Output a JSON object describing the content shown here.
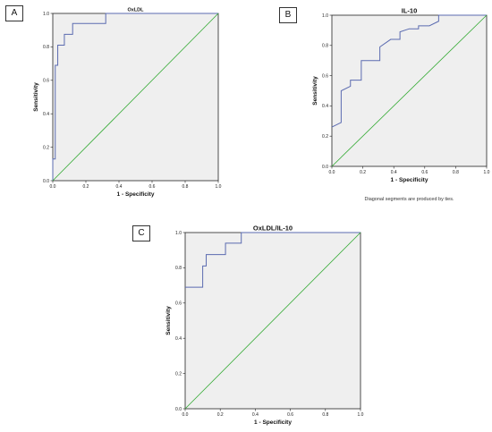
{
  "panels": [
    {
      "label": "A"
    },
    {
      "label": "B"
    },
    {
      "label": "C"
    }
  ],
  "chart_data": [
    {
      "type": "line",
      "title": "OxLDL",
      "xlabel": "1 - Specificity",
      "ylabel": "Sensitivity",
      "xlim": [
        0,
        1
      ],
      "ylim": [
        0,
        1
      ],
      "ticks": [
        "0.0",
        "0.2",
        "0.4",
        "0.6",
        "0.8",
        "1.0"
      ],
      "series": [
        {
          "kind": "roc",
          "color": "#5b6bb0",
          "points": [
            [
              0,
              0
            ],
            [
              0,
              0.13
            ],
            [
              0.015,
              0.13
            ],
            [
              0.015,
              0.69
            ],
            [
              0.03,
              0.69
            ],
            [
              0.03,
              0.81
            ],
            [
              0.07,
              0.81
            ],
            [
              0.07,
              0.875
            ],
            [
              0.12,
              0.875
            ],
            [
              0.12,
              0.94
            ],
            [
              0.32,
              0.94
            ],
            [
              0.32,
              1.0
            ],
            [
              1,
              1
            ]
          ]
        },
        {
          "kind": "reference",
          "color": "#33aa33",
          "points": [
            [
              0,
              0
            ],
            [
              1,
              1
            ]
          ]
        }
      ],
      "note": ""
    },
    {
      "type": "line",
      "title": "IL-10",
      "xlabel": "1 - Specificity",
      "ylabel": "Sensitivity",
      "xlim": [
        0,
        1
      ],
      "ylim": [
        0,
        1
      ],
      "ticks": [
        "0.0",
        "0.2",
        "0.4",
        "0.6",
        "0.8",
        "1.0"
      ],
      "series": [
        {
          "kind": "roc",
          "color": "#5b6bb0",
          "points": [
            [
              0,
              0.26
            ],
            [
              0.06,
              0.29
            ],
            [
              0.06,
              0.5
            ],
            [
              0.12,
              0.53
            ],
            [
              0.12,
              0.57
            ],
            [
              0.19,
              0.57
            ],
            [
              0.19,
              0.7
            ],
            [
              0.31,
              0.7
            ],
            [
              0.31,
              0.79
            ],
            [
              0.38,
              0.84
            ],
            [
              0.44,
              0.84
            ],
            [
              0.44,
              0.89
            ],
            [
              0.5,
              0.91
            ],
            [
              0.56,
              0.91
            ],
            [
              0.56,
              0.93
            ],
            [
              0.63,
              0.93
            ],
            [
              0.69,
              0.96
            ],
            [
              0.69,
              1.0
            ],
            [
              1,
              1
            ]
          ]
        },
        {
          "kind": "reference",
          "color": "#33aa33",
          "points": [
            [
              0,
              0
            ],
            [
              1,
              1
            ]
          ]
        }
      ],
      "note": "Diagonal segments are produced by ties."
    },
    {
      "type": "line",
      "title": "OxLDL/IL-10",
      "xlabel": "1 - Specificity",
      "ylabel": "Sensitivity",
      "xlim": [
        0,
        1
      ],
      "ylim": [
        0,
        1
      ],
      "ticks": [
        "0.0",
        "0.2",
        "0.4",
        "0.6",
        "0.8",
        "1.0"
      ],
      "series": [
        {
          "kind": "roc",
          "color": "#5b6bb0",
          "points": [
            [
              0,
              0.69
            ],
            [
              0.1,
              0.69
            ],
            [
              0.1,
              0.81
            ],
            [
              0.12,
              0.81
            ],
            [
              0.12,
              0.875
            ],
            [
              0.23,
              0.875
            ],
            [
              0.23,
              0.94
            ],
            [
              0.32,
              0.94
            ],
            [
              0.32,
              1.0
            ],
            [
              1,
              1
            ]
          ]
        },
        {
          "kind": "reference",
          "color": "#33aa33",
          "points": [
            [
              0,
              0
            ],
            [
              1,
              1
            ]
          ]
        }
      ],
      "note": ""
    }
  ],
  "colors": {
    "plot_background": "#efefef",
    "frame": "#222222"
  }
}
